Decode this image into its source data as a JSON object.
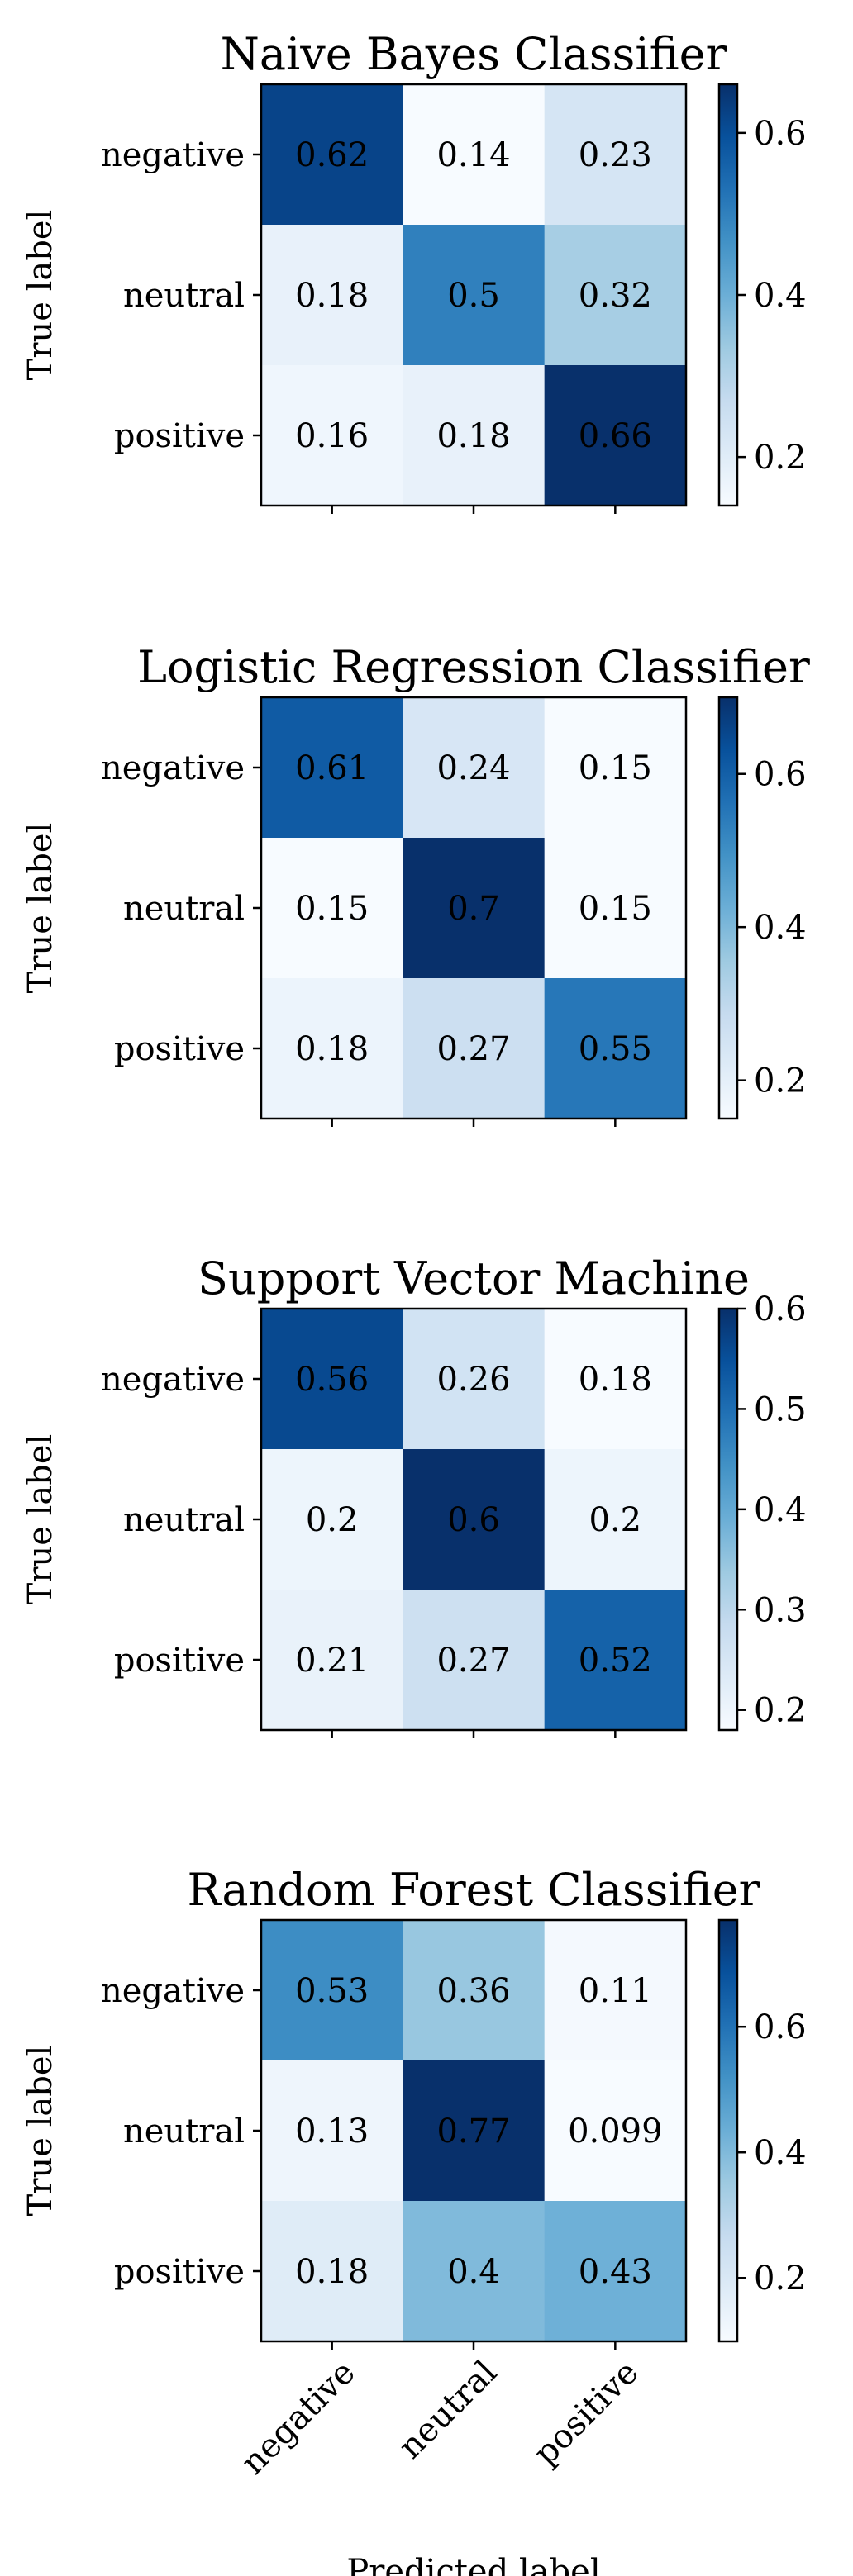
{
  "chart_data": [
    {
      "type": "heatmap",
      "title": "Naive Bayes Classifier",
      "ylabel": "True label",
      "xlabel": "",
      "row_labels": [
        "negative",
        "neutral",
        "positive"
      ],
      "col_labels": [
        "negative",
        "neutral",
        "positive"
      ],
      "show_col_labels": false,
      "matrix": [
        [
          0.62,
          0.14,
          0.23
        ],
        [
          0.18,
          0.5,
          0.32
        ],
        [
          0.16,
          0.18,
          0.66
        ]
      ],
      "cell_text": [
        [
          "0.62",
          "0.14",
          "0.23"
        ],
        [
          "0.18",
          "0.5",
          "0.32"
        ],
        [
          "0.16",
          "0.18",
          "0.66"
        ]
      ],
      "vmin": 0.14,
      "vmax": 0.66,
      "colorbar_ticks": [
        "0.2",
        "0.4",
        "0.6"
      ]
    },
    {
      "type": "heatmap",
      "title": "Logistic Regression Classifier",
      "ylabel": "True label",
      "xlabel": "",
      "row_labels": [
        "negative",
        "neutral",
        "positive"
      ],
      "col_labels": [
        "negative",
        "neutral",
        "positive"
      ],
      "show_col_labels": false,
      "matrix": [
        [
          0.61,
          0.24,
          0.15
        ],
        [
          0.15,
          0.7,
          0.15
        ],
        [
          0.18,
          0.27,
          0.55
        ]
      ],
      "cell_text": [
        [
          "0.61",
          "0.24",
          "0.15"
        ],
        [
          "0.15",
          "0.7",
          "0.15"
        ],
        [
          "0.18",
          "0.27",
          "0.55"
        ]
      ],
      "vmin": 0.15,
      "vmax": 0.7,
      "colorbar_ticks": [
        "0.2",
        "0.4",
        "0.6"
      ]
    },
    {
      "type": "heatmap",
      "title": "Support Vector Machine",
      "ylabel": "True label",
      "xlabel": "",
      "row_labels": [
        "negative",
        "neutral",
        "positive"
      ],
      "col_labels": [
        "negative",
        "neutral",
        "positive"
      ],
      "show_col_labels": false,
      "matrix": [
        [
          0.56,
          0.26,
          0.18
        ],
        [
          0.2,
          0.6,
          0.2
        ],
        [
          0.21,
          0.27,
          0.52
        ]
      ],
      "cell_text": [
        [
          "0.56",
          "0.26",
          "0.18"
        ],
        [
          "0.2",
          "0.6",
          "0.2"
        ],
        [
          "0.21",
          "0.27",
          "0.52"
        ]
      ],
      "vmin": 0.18,
      "vmax": 0.6,
      "colorbar_ticks": [
        "0.2",
        "0.3",
        "0.4",
        "0.5",
        "0.6"
      ]
    },
    {
      "type": "heatmap",
      "title": "Random Forest Classifier",
      "ylabel": "True label",
      "xlabel": "Predicted label",
      "row_labels": [
        "negative",
        "neutral",
        "positive"
      ],
      "col_labels": [
        "negative",
        "neutral",
        "positive"
      ],
      "show_col_labels": true,
      "matrix": [
        [
          0.53,
          0.36,
          0.11
        ],
        [
          0.13,
          0.77,
          0.099
        ],
        [
          0.18,
          0.4,
          0.43
        ]
      ],
      "cell_text": [
        [
          "0.53",
          "0.36",
          "0.11"
        ],
        [
          "0.13",
          "0.77",
          "0.099"
        ],
        [
          "0.18",
          "0.4",
          "0.43"
        ]
      ],
      "vmin": 0.099,
      "vmax": 0.77,
      "colorbar_ticks": [
        "0.2",
        "0.4",
        "0.6"
      ]
    }
  ]
}
